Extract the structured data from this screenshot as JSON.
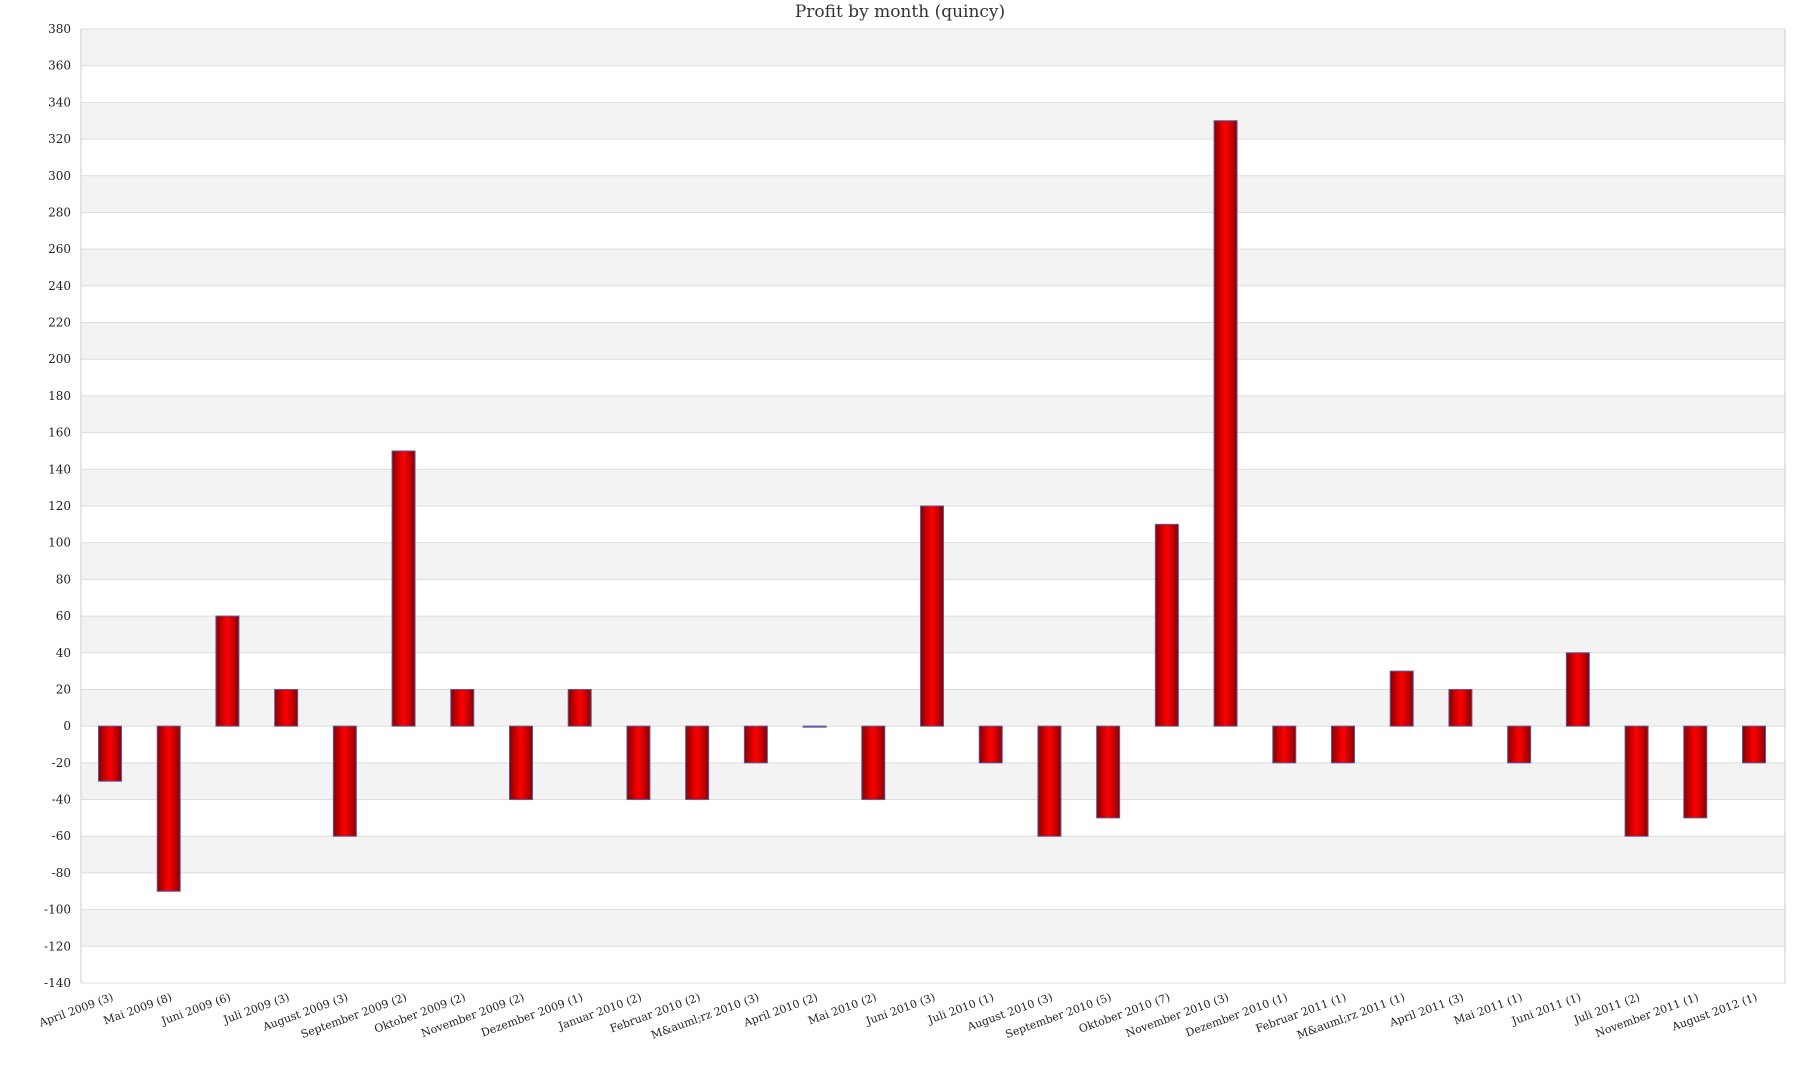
{
  "chart_data": {
    "type": "bar",
    "title": "Profit by month  (quincy)",
    "xlabel": "",
    "ylabel": "",
    "ylim": [
      -140,
      380
    ],
    "ytick_step": 20,
    "grid": true,
    "legend": "none",
    "categories": [
      "April 2009 (3)",
      "Mai 2009 (8)",
      "Juni 2009 (6)",
      "Juli 2009 (3)",
      "August 2009 (3)",
      "September 2009 (2)",
      "Oktober 2009 (2)",
      "November 2009 (2)",
      "Dezember 2009 (1)",
      "Januar 2010 (2)",
      "Februar 2010 (2)",
      "M&auml;rz 2010 (3)",
      "April 2010 (2)",
      "Mai 2010 (2)",
      "Juni 2010 (3)",
      "Juli 2010 (1)",
      "August 2010 (3)",
      "September 2010 (5)",
      "Oktober 2010 (7)",
      "November 2010 (3)",
      "Dezember 2010 (1)",
      "Februar 2011 (1)",
      "M&auml;rz 2011 (1)",
      "April 2011 (3)",
      "Mai 2011 (1)",
      "Juni 2011 (1)",
      "Juli 2011 (2)",
      "November 2011 (1)",
      "August 2012 (1)"
    ],
    "values": [
      -30,
      -90,
      60,
      20,
      -60,
      150,
      20,
      -40,
      20,
      -40,
      -40,
      -20,
      0,
      -40,
      120,
      -20,
      -60,
      -50,
      110,
      330,
      -20,
      -20,
      30,
      20,
      -20,
      40,
      -60,
      -50,
      -20
    ],
    "colors": {
      "bar_center": "#ff0000",
      "bar_edge": "#8a0000",
      "bar_outline": "#5a5aa0",
      "band": "#f3f3f3",
      "gridline": "#dddddd"
    }
  }
}
